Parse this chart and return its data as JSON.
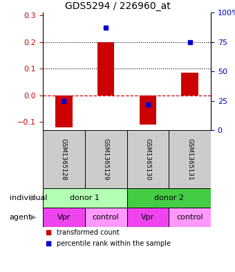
{
  "title": "GDS5294 / 226960_at",
  "samples": [
    "GSM1365128",
    "GSM1365129",
    "GSM1365130",
    "GSM1365131"
  ],
  "bar_values": [
    -0.12,
    0.2,
    -0.11,
    0.085
  ],
  "percentile_values": [
    25,
    87,
    22,
    75
  ],
  "bar_color": "#cc0000",
  "percentile_color": "#0000cc",
  "ylim_left": [
    -0.13,
    0.31
  ],
  "yticks_left": [
    -0.1,
    0.0,
    0.1,
    0.2,
    0.3
  ],
  "yticks_right": [
    0,
    25,
    50,
    75,
    100
  ],
  "ytick_labels_right": [
    "0",
    "25",
    "50",
    "75",
    "100%"
  ],
  "hlines_dotted": [
    0.1,
    0.2
  ],
  "hline_dashed": 0.0,
  "individual_labels": [
    "donor 1",
    "donor 2"
  ],
  "individual_colors_light": "#b3ffb3",
  "individual_colors_dark": "#44cc44",
  "agent_colors": [
    "#ee44ee",
    "#ff99ff",
    "#ee44ee",
    "#ff99ff"
  ],
  "agent_labels": [
    "Vpr",
    "control",
    "Vpr",
    "control"
  ],
  "sample_box_color": "#cccccc",
  "legend_red_label": "transformed count",
  "legend_blue_label": "percentile rank within the sample",
  "row_label_individual": "individual",
  "row_label_agent": "agent"
}
